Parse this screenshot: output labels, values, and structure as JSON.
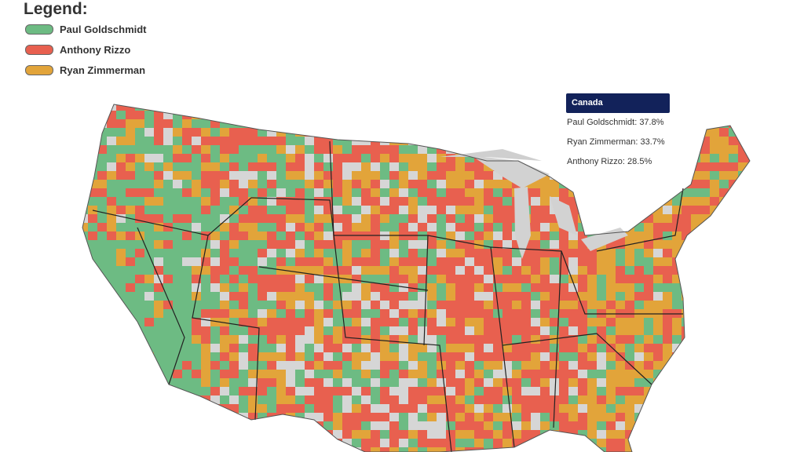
{
  "legend": {
    "title": "Legend:",
    "items": [
      {
        "label": "Paul Goldschmidt",
        "color": "#6dbb83"
      },
      {
        "label": "Anthony Rizzo",
        "color": "#e8604f"
      },
      {
        "label": "Ryan Zimmerman",
        "color": "#e2a43a"
      }
    ]
  },
  "tooltip": {
    "title": "Canada",
    "lines": [
      "Paul Goldschmidt: 37.8%",
      "Ryan Zimmerman: 33.7%",
      "Anthony Rizzo: 28.5%"
    ]
  }
}
